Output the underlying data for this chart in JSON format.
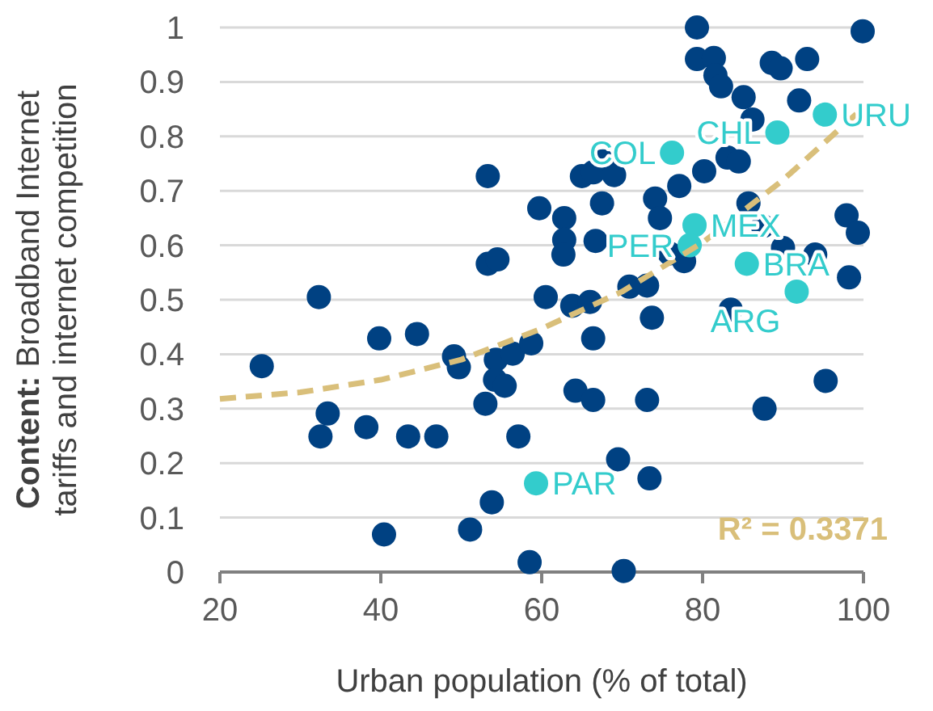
{
  "chart_data": {
    "type": "scatter",
    "xlabel": "Urban population (% of total)",
    "ylabel": "Content: Broadband Internet tariffs and internet competition",
    "xlim": [
      20,
      100
    ],
    "xticks": [
      20,
      40,
      60,
      80,
      100
    ],
    "ylim": [
      0,
      1
    ],
    "yticks": [
      0,
      0.1,
      0.2,
      0.3,
      0.4,
      0.5,
      0.6,
      0.7,
      0.8,
      0.9,
      1
    ],
    "grid": "y",
    "marker": "circle",
    "series": [
      {
        "color": "#004182",
        "x": [
          53.3,
          59.7,
          62.8,
          62.8,
          62.7,
          53.3,
          54.5,
          32.3,
          60.5,
          63.8,
          65,
          79.3,
          99.9,
          79.3,
          81.4,
          81.6,
          82.3,
          88.6,
          89.7,
          93,
          85.1,
          92,
          86.2,
          83.1,
          84.5,
          80.2,
          77.1,
          67.6,
          66.4,
          69,
          67.5,
          74.1,
          74.7,
          85.7,
          87.5,
          90,
          94,
          97.9,
          99.3,
          98.2,
          66.7,
          75.9,
          77.7,
          70.9,
          73.1,
          66,
          83.5,
          73.7,
          25.2,
          39.8,
          44.5,
          49.1,
          49.7,
          54.3,
          56.4,
          58.7,
          54.2,
          55.4,
          53,
          64.2,
          33.4,
          32.5,
          38.2,
          43.4,
          46.9,
          57.1,
          53.8,
          51.1,
          40.4,
          58.5,
          66.4,
          66.4,
          73.1,
          87.7,
          95.3,
          69.5,
          73.4,
          70.2
        ],
        "values": [
          0.727,
          0.668,
          0.65,
          0.61,
          0.583,
          0.566,
          0.574,
          0.505,
          0.505,
          0.489,
          0.727,
          1,
          0.993,
          0.942,
          0.944,
          0.912,
          0.892,
          0.935,
          0.925,
          0.942,
          0.872,
          0.866,
          0.831,
          0.761,
          0.754,
          0.736,
          0.709,
          0.754,
          0.734,
          0.729,
          0.677,
          0.686,
          0.65,
          0.677,
          0.635,
          0.595,
          0.583,
          0.655,
          0.623,
          0.541,
          0.608,
          0.585,
          0.571,
          0.524,
          0.526,
          0.496,
          0.482,
          0.467,
          0.378,
          0.429,
          0.437,
          0.396,
          0.376,
          0.39,
          0.401,
          0.42,
          0.353,
          0.342,
          0.309,
          0.333,
          0.291,
          0.249,
          0.266,
          0.249,
          0.249,
          0.249,
          0.128,
          0.078,
          0.069,
          0.018,
          0.429,
          0.316,
          0.316,
          0.3,
          0.351,
          0.207,
          0.172,
          0.002
        ]
      },
      {
        "color": "#33cccc",
        "x": [
          95.2,
          89.3,
          76.2,
          79,
          78.4,
          85.5,
          91.7,
          59.3
        ],
        "values": [
          0.84,
          0.807,
          0.77,
          0.637,
          0.6,
          0.566,
          0.515,
          0.163
        ]
      },
      {
        "type": "line",
        "line_style": "dashed",
        "marker": "none",
        "color": "#d9bf7a",
        "x": [
          20,
          30,
          40,
          50,
          60,
          70,
          80,
          90,
          100
        ],
        "values": [
          0.318,
          0.33,
          0.353,
          0.39,
          0.447,
          0.515,
          0.605,
          0.72,
          0.853
        ]
      }
    ],
    "annotations": [
      {
        "text": "URU",
        "x": 95.2,
        "y": 0.84
      },
      {
        "text": "CHL",
        "x": 89.3,
        "y": 0.807
      },
      {
        "text": "COL",
        "x": 76.2,
        "y": 0.77
      },
      {
        "text": "MEX",
        "x": 79,
        "y": 0.637
      },
      {
        "text": "PER",
        "x": 78.4,
        "y": 0.6
      },
      {
        "text": "BRA",
        "x": 85.5,
        "y": 0.566
      },
      {
        "text": "ARG",
        "x": 91.7,
        "y": 0.515
      },
      {
        "text": "PAR",
        "x": 59.3,
        "y": 0.163
      },
      "R² = 0.3371"
    ]
  }
}
